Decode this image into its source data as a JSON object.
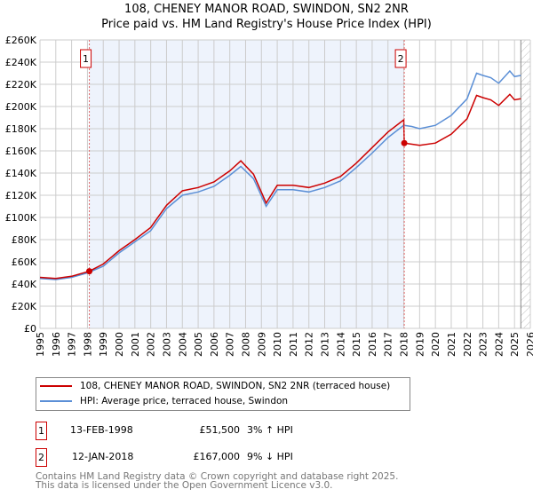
{
  "title": "108, CHENEY MANOR ROAD, SWINDON, SN2 2NR",
  "subtitle": "Price paid vs. HM Land Registry's House Price Index (HPI)",
  "chart_data": {
    "type": "line",
    "xlim": [
      1995,
      2026
    ],
    "ylim": [
      0,
      260000
    ],
    "x_ticks": [
      "1995",
      "1996",
      "1997",
      "1998",
      "1999",
      "2000",
      "2001",
      "2002",
      "2003",
      "2004",
      "2005",
      "2006",
      "2007",
      "2008",
      "2009",
      "2010",
      "2011",
      "2012",
      "2013",
      "2014",
      "2015",
      "2016",
      "2017",
      "2018",
      "2019",
      "2020",
      "2021",
      "2022",
      "2023",
      "2024",
      "2025",
      "2026"
    ],
    "y_ticks": [
      "£0",
      "£20K",
      "£40K",
      "£60K",
      "£80K",
      "£100K",
      "£120K",
      "£140K",
      "£160K",
      "£180K",
      "£200K",
      "£220K",
      "£240K",
      "£260K"
    ],
    "grid": true,
    "shaded_range": [
      1998.12,
      2018.03
    ],
    "hatched_from": 2025.4,
    "series": [
      {
        "name": "108, CHENEY MANOR ROAD, SWINDON, SN2 2NR (terraced house)",
        "color": "#cc0000",
        "x": [
          1995,
          1996,
          1997,
          1998.12,
          1999,
          2000,
          2001,
          2002,
          2003,
          2004,
          2005,
          2006,
          2007,
          2007.7,
          2008.5,
          2009.3,
          2010,
          2011,
          2012,
          2013,
          2014,
          2015,
          2016,
          2017,
          2018.0,
          2018.03,
          2019,
          2020,
          2021,
          2022,
          2022.6,
          2023,
          2023.5,
          2024,
          2024.7,
          2025,
          2025.4
        ],
        "y": [
          46000,
          45000,
          47000,
          51500,
          58000,
          70000,
          80000,
          91000,
          111000,
          124000,
          127000,
          132000,
          142000,
          151000,
          139000,
          113000,
          129000,
          129000,
          127000,
          131000,
          137000,
          149000,
          163000,
          177000,
          188000,
          167000,
          165000,
          167000,
          175000,
          189000,
          210000,
          208000,
          206000,
          201000,
          211000,
          206000,
          207000
        ]
      },
      {
        "name": "HPI: Average price, terraced house, Swindon",
        "color": "#5b8fd6",
        "x": [
          1995,
          1996,
          1997,
          1998,
          1999,
          2000,
          2001,
          2002,
          2003,
          2004,
          2005,
          2006,
          2007,
          2007.7,
          2008.5,
          2009.3,
          2010,
          2011,
          2012,
          2013,
          2014,
          2015,
          2016,
          2017,
          2018,
          2018.5,
          2019,
          2020,
          2021,
          2022,
          2022.6,
          2023,
          2023.5,
          2024,
          2024.7,
          2025,
          2025.4
        ],
        "y": [
          45000,
          44000,
          46000,
          50000,
          56000,
          68000,
          78000,
          88000,
          108000,
          120000,
          123000,
          128000,
          138000,
          146000,
          135000,
          110000,
          125000,
          125000,
          123000,
          127000,
          133000,
          145000,
          158000,
          172000,
          183000,
          182000,
          180000,
          183000,
          192000,
          207000,
          230000,
          228000,
          226000,
          221000,
          232000,
          227000,
          228000
        ]
      }
    ],
    "annotations": [
      {
        "label": "1",
        "x": 1998.12,
        "y": 51500
      },
      {
        "label": "2",
        "x": 2018.03,
        "y": 167000
      }
    ]
  },
  "legend": [
    "108, CHENEY MANOR ROAD, SWINDON, SN2 2NR (terraced house)",
    "HPI: Average price, terraced house, Swindon"
  ],
  "transactions": [
    {
      "num": "1",
      "date": "13-FEB-1998",
      "price": "£51,500",
      "hpi": "3% ↑ HPI"
    },
    {
      "num": "2",
      "date": "12-JAN-2018",
      "price": "£167,000",
      "hpi": "9% ↓ HPI"
    }
  ],
  "footer": [
    "Contains HM Land Registry data © Crown copyright and database right 2025.",
    "This data is licensed under the Open Government Licence v3.0."
  ]
}
